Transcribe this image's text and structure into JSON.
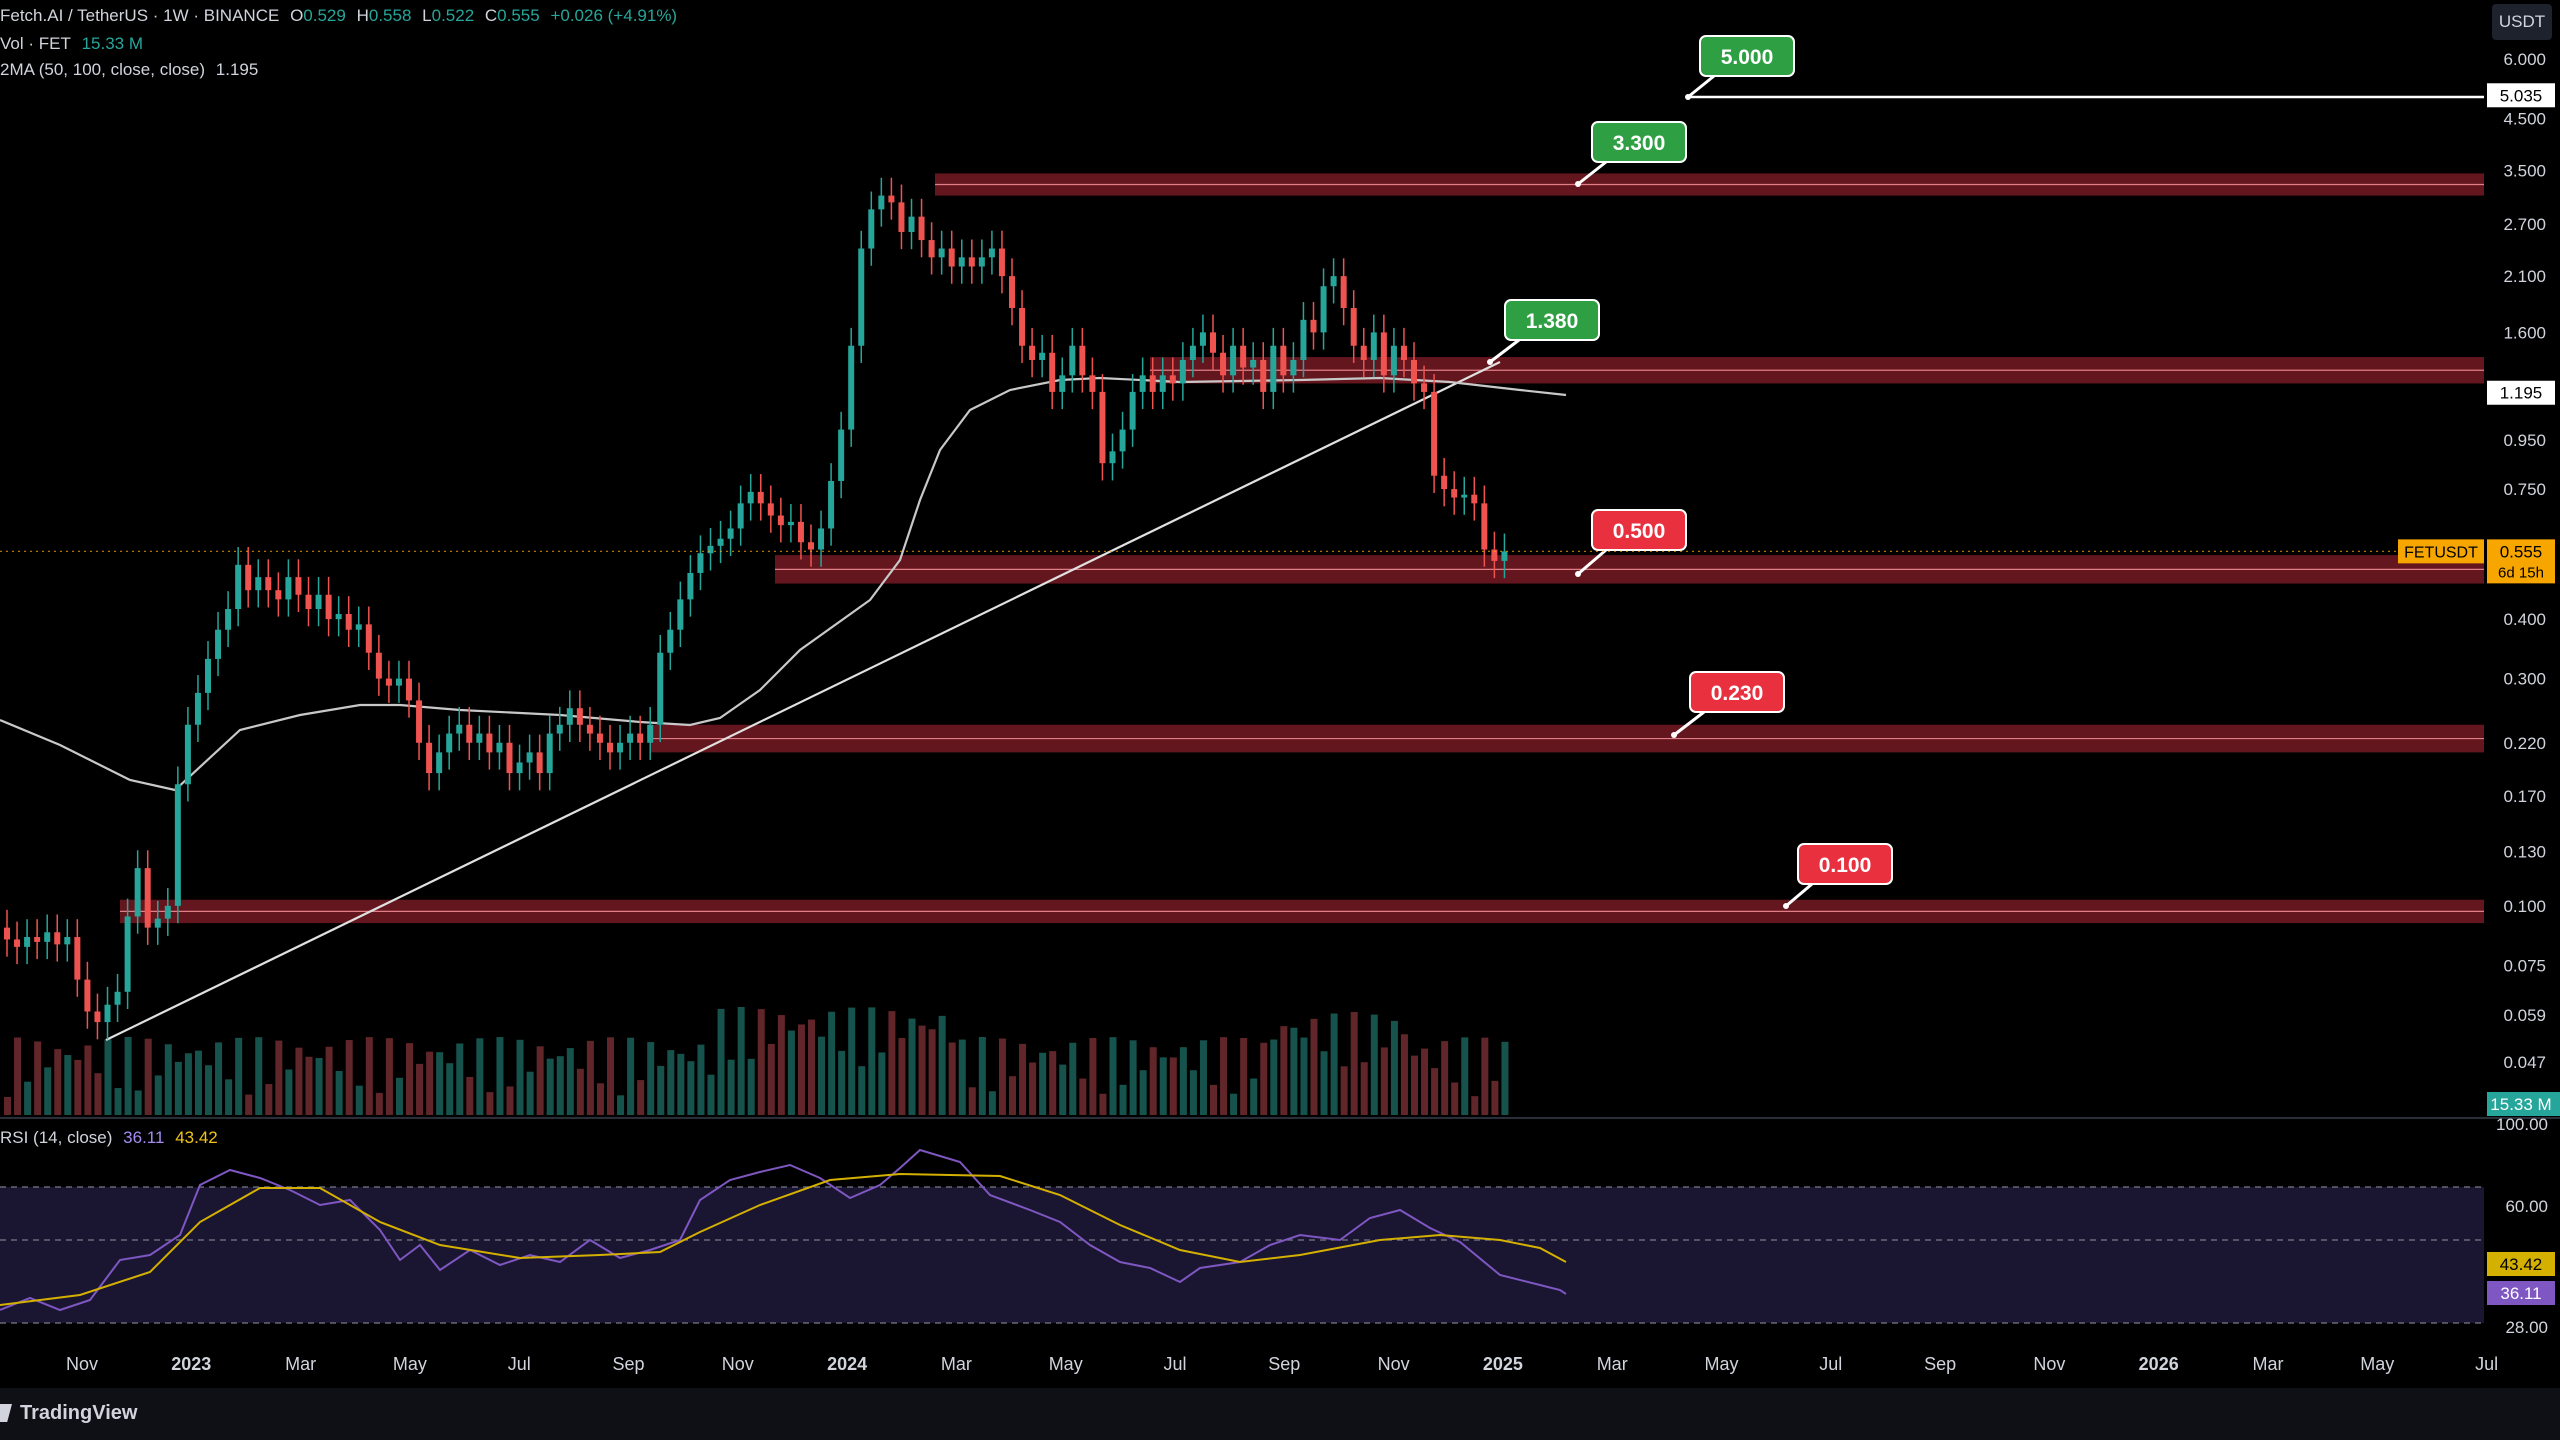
{
  "legend": {
    "symbol_line": "Fetch.AI / TetherUS · 1W · BINANCE",
    "o_label": "O",
    "o_value": "0.529",
    "h_label": "H",
    "h_value": "0.558",
    "l_label": "L",
    "l_value": "0.522",
    "c_label": "C",
    "c_value": "0.555",
    "change": "+0.026 (+4.91%)",
    "vol_label": "Vol · FET",
    "vol_value": "15.33 M",
    "ma_label": "2MA (50, 100, close, close)",
    "ma_value": "1.195",
    "rsi_label": "RSI (14, close)",
    "rsi_value": "36.11",
    "rsi_ma_value": "43.42"
  },
  "unit": "USDT",
  "footer": {
    "brand": "TradingView"
  },
  "colors": {
    "up": "#26a69a",
    "down": "#ef5350",
    "zone": "#8b1f2a",
    "ma": "#c8c8c8",
    "rsi": "#7e57c2",
    "rsi_ma": "#d4b000",
    "green_label": "#2ea043",
    "red_label": "#e8303f",
    "price_tag": "#f7a600"
  },
  "chart_data": {
    "type": "candlestick",
    "y_scale": "log",
    "y_ticks": [
      "6.000",
      "4.500",
      "3.500",
      "2.700",
      "2.100",
      "1.600",
      "0.950",
      "0.750",
      "0.400",
      "0.300",
      "0.220",
      "0.170",
      "0.130",
      "0.100",
      "0.075",
      "0.059",
      "0.047"
    ],
    "x_ticks": [
      "Nov",
      "2023",
      "Mar",
      "May",
      "Jul",
      "Sep",
      "Nov",
      "2024",
      "Mar",
      "May",
      "Jul",
      "Sep",
      "Nov",
      "2025",
      "Mar",
      "May",
      "Jul",
      "Sep",
      "Nov",
      "2026",
      "Mar",
      "May",
      "Jul"
    ],
    "price_tags": {
      "target_line": "5.035",
      "ma_tag": "1.195",
      "symbol": "FETUSDT",
      "last_price": "0.555",
      "countdown": "6d 15h",
      "volume": "15.33 M"
    },
    "levels": [
      {
        "label": "5.000",
        "kind": "target-line",
        "tone": "green"
      },
      {
        "label": "3.300",
        "kind": "zone",
        "tone": "green",
        "low": 3.1,
        "high": 3.45
      },
      {
        "label": "1.380",
        "kind": "zone",
        "tone": "green",
        "low": 1.25,
        "high": 1.42
      },
      {
        "label": "0.500",
        "kind": "zone",
        "tone": "red",
        "low": 0.475,
        "high": 0.545
      },
      {
        "label": "0.230",
        "kind": "zone",
        "tone": "red",
        "low": 0.21,
        "high": 0.24
      },
      {
        "label": "0.100",
        "kind": "zone",
        "tone": "red",
        "low": 0.092,
        "high": 0.103
      }
    ],
    "series": [
      {
        "name": "FETUSDT",
        "type": "candlestick"
      },
      {
        "name": "Vol · FET",
        "type": "volume"
      },
      {
        "name": "2MA (50, 100, close, close)",
        "type": "line"
      },
      {
        "name": "RSI (14, close)",
        "type": "line"
      }
    ],
    "rsi_ticks": [
      "100.00",
      "60.00",
      "28.00"
    ],
    "rsi_tags": {
      "rsi_ma": "43.42",
      "rsi": "36.11"
    }
  }
}
